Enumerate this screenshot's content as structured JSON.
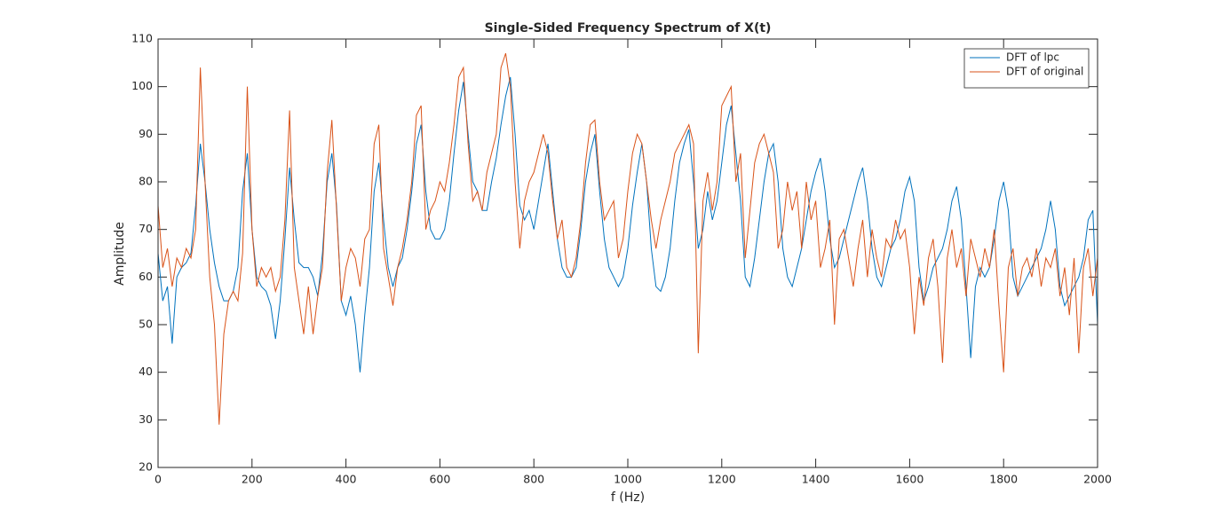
{
  "chart_data": {
    "type": "line",
    "title": "Single-Sided Frequency Spectrum of X(t)",
    "x_label": "f (Hz)",
    "y_label": "Amplitude",
    "xlim": [
      0,
      2000
    ],
    "ylim": [
      20,
      110
    ],
    "xticks": [
      0,
      200,
      400,
      600,
      800,
      1000,
      1200,
      1400,
      1600,
      1800,
      2000
    ],
    "yticks": [
      20,
      30,
      40,
      50,
      60,
      70,
      80,
      90,
      100,
      110
    ],
    "legend": "northeast",
    "box": true,
    "x": [
      0,
      10,
      20,
      30,
      40,
      50,
      60,
      70,
      80,
      90,
      100,
      110,
      120,
      130,
      140,
      150,
      160,
      170,
      180,
      190,
      200,
      210,
      220,
      230,
      240,
      250,
      260,
      270,
      280,
      290,
      300,
      310,
      320,
      330,
      340,
      350,
      360,
      370,
      380,
      390,
      400,
      410,
      420,
      430,
      440,
      450,
      460,
      470,
      480,
      490,
      500,
      510,
      520,
      530,
      540,
      550,
      560,
      570,
      580,
      590,
      600,
      610,
      620,
      630,
      640,
      650,
      660,
      670,
      680,
      690,
      700,
      710,
      720,
      730,
      740,
      750,
      760,
      770,
      780,
      790,
      800,
      810,
      820,
      830,
      840,
      850,
      860,
      870,
      880,
      890,
      900,
      910,
      920,
      930,
      940,
      950,
      960,
      970,
      980,
      990,
      1000,
      1010,
      1020,
      1030,
      1040,
      1050,
      1060,
      1070,
      1080,
      1090,
      1100,
      1110,
      1120,
      1130,
      1140,
      1150,
      1160,
      1170,
      1180,
      1190,
      1200,
      1210,
      1220,
      1230,
      1240,
      1250,
      1260,
      1270,
      1280,
      1290,
      1300,
      1310,
      1320,
      1330,
      1340,
      1350,
      1360,
      1370,
      1380,
      1390,
      1400,
      1410,
      1420,
      1430,
      1440,
      1450,
      1460,
      1470,
      1480,
      1490,
      1500,
      1510,
      1520,
      1530,
      1540,
      1550,
      1560,
      1570,
      1580,
      1590,
      1600,
      1610,
      1620,
      1630,
      1640,
      1650,
      1660,
      1670,
      1680,
      1690,
      1700,
      1710,
      1720,
      1730,
      1740,
      1750,
      1760,
      1770,
      1780,
      1790,
      1800,
      1810,
      1820,
      1830,
      1840,
      1850,
      1860,
      1870,
      1880,
      1890,
      1900,
      1910,
      1920,
      1930,
      1940,
      1950,
      1960,
      1970,
      1980,
      1990,
      2000
    ],
    "series": [
      {
        "name": "DFT of lpc",
        "color": "#0072bd",
        "values": [
          65,
          55,
          58,
          46,
          60,
          62,
          63,
          65,
          75,
          88,
          80,
          70,
          63,
          58,
          55,
          55,
          57,
          62,
          78,
          86,
          70,
          60,
          58,
          57,
          54,
          47,
          55,
          68,
          83,
          72,
          63,
          62,
          62,
          60,
          56,
          65,
          80,
          86,
          75,
          55,
          52,
          56,
          50,
          40,
          52,
          62,
          78,
          84,
          72,
          62,
          58,
          62,
          64,
          70,
          78,
          88,
          92,
          78,
          70,
          68,
          68,
          70,
          76,
          86,
          95,
          101,
          90,
          80,
          78,
          74,
          74,
          80,
          85,
          92,
          98,
          102,
          90,
          75,
          72,
          74,
          70,
          76,
          82,
          88,
          78,
          68,
          62,
          60,
          60,
          62,
          70,
          80,
          86,
          90,
          78,
          68,
          62,
          60,
          58,
          60,
          66,
          75,
          82,
          88,
          80,
          66,
          58,
          57,
          60,
          66,
          76,
          84,
          88,
          91,
          80,
          66,
          70,
          78,
          72,
          76,
          84,
          92,
          96,
          86,
          76,
          60,
          58,
          64,
          72,
          80,
          86,
          88,
          80,
          66,
          60,
          58,
          62,
          66,
          72,
          78,
          82,
          85,
          78,
          68,
          62,
          64,
          68,
          72,
          76,
          80,
          83,
          76,
          66,
          60,
          58,
          62,
          66,
          68,
          72,
          78,
          81,
          76,
          62,
          55,
          58,
          62,
          64,
          66,
          70,
          76,
          79,
          72,
          58,
          43,
          58,
          62,
          60,
          62,
          68,
          76,
          80,
          74,
          60,
          56,
          58,
          60,
          62,
          64,
          66,
          70,
          76,
          70,
          58,
          54,
          56,
          58,
          60,
          64,
          72,
          74,
          50
        ]
      },
      {
        "name": "DFT of original",
        "color": "#d95319",
        "values": [
          75,
          62,
          66,
          58,
          64,
          62,
          66,
          64,
          70,
          104,
          80,
          60,
          50,
          29,
          48,
          55,
          57,
          55,
          65,
          100,
          70,
          58,
          62,
          60,
          62,
          57,
          60,
          72,
          95,
          62,
          55,
          48,
          58,
          48,
          56,
          62,
          82,
          93,
          74,
          55,
          62,
          66,
          64,
          58,
          68,
          70,
          88,
          92,
          66,
          60,
          54,
          62,
          66,
          72,
          80,
          94,
          96,
          70,
          74,
          76,
          80,
          78,
          84,
          92,
          102,
          104,
          88,
          76,
          78,
          74,
          82,
          86,
          90,
          104,
          107,
          100,
          80,
          66,
          76,
          80,
          82,
          86,
          90,
          86,
          76,
          68,
          72,
          62,
          60,
          64,
          72,
          84,
          92,
          93,
          80,
          72,
          74,
          76,
          64,
          68,
          78,
          86,
          90,
          88,
          80,
          72,
          66,
          72,
          76,
          80,
          86,
          88,
          90,
          92,
          88,
          44,
          76,
          82,
          74,
          80,
          96,
          98,
          100,
          80,
          86,
          64,
          74,
          84,
          88,
          90,
          86,
          82,
          66,
          70,
          80,
          74,
          78,
          66,
          80,
          72,
          76,
          62,
          66,
          72,
          50,
          68,
          70,
          64,
          58,
          66,
          72,
          60,
          70,
          64,
          60,
          68,
          66,
          72,
          68,
          70,
          62,
          48,
          60,
          54,
          64,
          68,
          58,
          42,
          64,
          70,
          62,
          66,
          56,
          68,
          64,
          60,
          66,
          62,
          70,
          54,
          40,
          62,
          66,
          56,
          62,
          64,
          60,
          66,
          58,
          64,
          62,
          66,
          56,
          62,
          52,
          64,
          44,
          62,
          66,
          56,
          64
        ]
      }
    ]
  }
}
